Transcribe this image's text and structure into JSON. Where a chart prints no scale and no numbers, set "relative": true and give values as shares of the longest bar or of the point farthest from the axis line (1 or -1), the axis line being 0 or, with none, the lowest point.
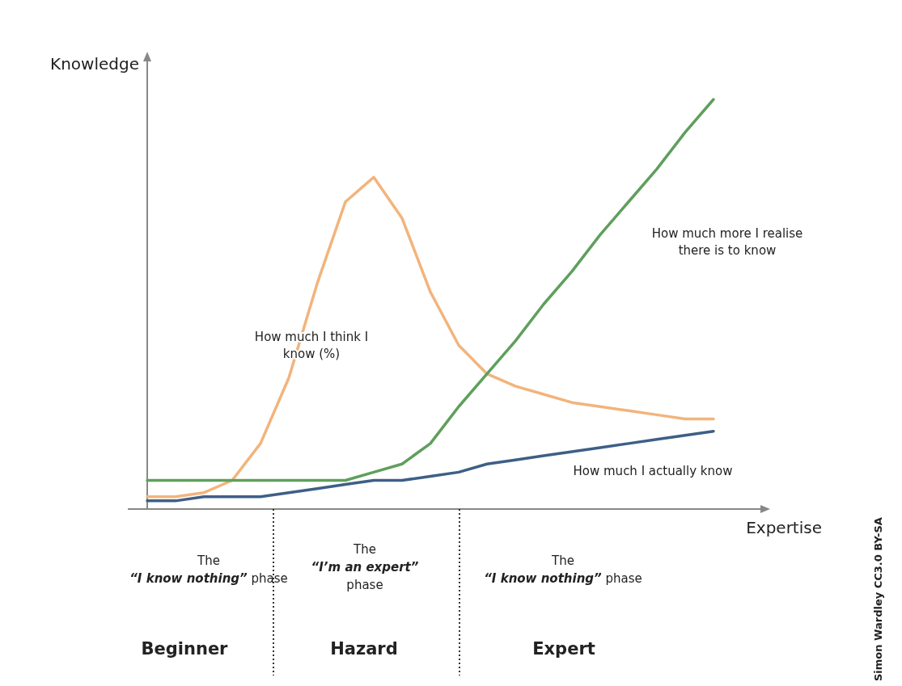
{
  "chart_data": {
    "type": "line",
    "relative": true,
    "xlabel": "Expertise",
    "ylabel": "Knowledge",
    "categories": [
      null,
      null,
      null,
      null,
      null,
      null,
      null,
      null,
      null,
      null,
      null,
      null,
      null,
      null,
      null,
      null,
      null,
      null,
      null,
      null,
      null
    ],
    "series": [
      {
        "name": "How much I think I know (%)",
        "color": "#f2b47c",
        "values": [
          0.03,
          0.03,
          0.04,
          0.07,
          0.16,
          0.32,
          0.55,
          0.75,
          0.81,
          0.71,
          0.53,
          0.4,
          0.33,
          0.3,
          0.28,
          0.26,
          0.25,
          0.24,
          0.23,
          0.22,
          0.22
        ]
      },
      {
        "name": "How much more I realise there is to know",
        "color": "#5f9f5c",
        "values": [
          0.07,
          0.07,
          0.07,
          0.07,
          0.07,
          0.07,
          0.07,
          0.07,
          0.09,
          0.11,
          0.16,
          0.25,
          0.33,
          0.41,
          0.5,
          0.58,
          0.67,
          0.75,
          0.83,
          0.92,
          1
        ]
      },
      {
        "name": "How much I actually know",
        "color": "#3d5f87",
        "values": [
          0.02,
          0.02,
          0.03,
          0.03,
          0.03,
          0.04,
          0.05,
          0.06,
          0.07,
          0.07,
          0.08,
          0.09,
          0.11,
          0.12,
          0.13,
          0.14,
          0.15,
          0.16,
          0.17,
          0.18,
          0.19
        ]
      }
    ],
    "annotations": [
      "The\n“I know nothing” phase",
      "The\n“I’m an expert”\nphase",
      "The\n“I know nothing” phase",
      "Beginner",
      "Hazard",
      "Expert",
      "Simon Wardley CC3.0 BY-SA"
    ]
  }
}
